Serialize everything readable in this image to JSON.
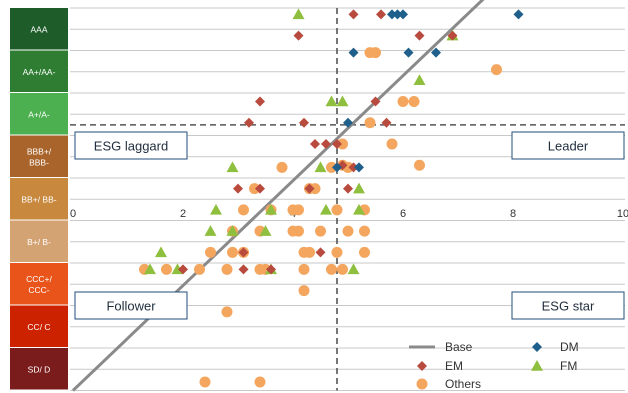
{
  "chart_data": {
    "type": "scatter",
    "title": "",
    "xlabel": "",
    "ylabel": "",
    "xlim": [
      0,
      10
    ],
    "x_ticks": [
      0,
      2,
      4,
      6,
      8,
      10
    ],
    "x_tick_labels": [
      "0",
      "2",
      "4",
      "6",
      "8",
      "10"
    ],
    "y_categories": [
      {
        "label": "AAA",
        "color": "#1e5c2a"
      },
      {
        "label": "AA+/AA-",
        "color": "#2e7d32"
      },
      {
        "label": "A+/A-",
        "color": "#4caf50"
      },
      {
        "label": "BBB+/ BBB-",
        "color": "#a8642a"
      },
      {
        "label": "BB+/ BB-",
        "color": "#c8893e"
      },
      {
        "label": "B+/ B-",
        "color": "#d4a373"
      },
      {
        "label": "CCC+/ CCC-",
        "color": "#e8541a"
      },
      {
        "label": "CC/ C",
        "color": "#cc2200"
      },
      {
        "label": "SD/ D",
        "color": "#7a1c1c"
      }
    ],
    "reference_lines": {
      "vertical_x": 4.8,
      "horizontal_row": 6.25
    },
    "quadrant_labels": {
      "top_left": "ESG laggard",
      "top_right": "Leader",
      "bottom_left": "Follower",
      "bottom_right": "ESG star"
    },
    "base_line": {
      "name": "Base",
      "from": [
        0,
        0
      ],
      "to": [
        8.1,
        10
      ]
    },
    "legend": {
      "position": "bottom-right"
    },
    "series": [
      {
        "name": "DM",
        "marker": "diamond",
        "color": "#1f5f8b",
        "points": [
          [
            6.2,
            9.85
          ],
          [
            6.8,
            9.85
          ],
          [
            7.6,
            9.85
          ],
          [
            7.8,
            9.85
          ],
          [
            8.6,
            9.85
          ],
          [
            9.1,
            9.85
          ],
          [
            6.8,
            9.35
          ],
          [
            7.5,
            9.35
          ],
          [
            5.8,
            8.85
          ],
          [
            5.9,
            8.85
          ],
          [
            6.0,
            8.85
          ],
          [
            8.1,
            8.85
          ],
          [
            5.1,
            7.95
          ],
          [
            6.1,
            7.95
          ],
          [
            6.6,
            7.95
          ],
          [
            5.0,
            6.3
          ],
          [
            5.2,
            5.25
          ],
          [
            4.8,
            5.25
          ]
        ]
      },
      {
        "name": "EM",
        "marker": "diamond",
        "color": "#b84a3e",
        "points": [
          [
            5.1,
            8.85
          ],
          [
            5.6,
            8.85
          ],
          [
            4.1,
            8.35
          ],
          [
            6.3,
            8.35
          ],
          [
            6.9,
            8.35
          ],
          [
            3.4,
            6.8
          ],
          [
            5.5,
            6.8
          ],
          [
            3.2,
            6.3
          ],
          [
            4.2,
            6.3
          ],
          [
            5.7,
            6.3
          ],
          [
            4.6,
            5.8
          ],
          [
            4.4,
            5.8
          ],
          [
            4.8,
            5.8
          ],
          [
            5.1,
            5.25
          ],
          [
            4.9,
            5.3
          ],
          [
            3.0,
            4.75
          ],
          [
            3.4,
            4.75
          ],
          [
            4.3,
            4.75
          ],
          [
            5.0,
            4.75
          ],
          [
            3.1,
            3.25
          ],
          [
            4.5,
            3.25
          ],
          [
            2.0,
            2.85
          ],
          [
            3.1,
            2.85
          ],
          [
            3.6,
            2.85
          ]
        ]
      },
      {
        "name": "FM",
        "marker": "triangle",
        "color": "#8fbf3f",
        "points": [
          [
            4.1,
            8.85
          ],
          [
            6.9,
            8.35
          ],
          [
            6.3,
            7.3
          ],
          [
            4.7,
            6.8
          ],
          [
            4.9,
            6.8
          ],
          [
            2.9,
            5.25
          ],
          [
            4.5,
            5.25
          ],
          [
            5.2,
            4.25
          ],
          [
            5.2,
            4.75
          ],
          [
            2.6,
            4.25
          ],
          [
            3.6,
            4.25
          ],
          [
            4.6,
            4.25
          ],
          [
            2.5,
            3.75
          ],
          [
            2.9,
            3.75
          ],
          [
            3.5,
            3.75
          ],
          [
            1.6,
            3.25
          ],
          [
            1.4,
            2.85
          ],
          [
            1.9,
            2.85
          ],
          [
            3.6,
            2.85
          ],
          [
            5.1,
            2.85
          ]
        ]
      },
      {
        "name": "Others",
        "marker": "circle",
        "color": "#f4a65e",
        "points": [
          [
            7.3,
            9.85
          ],
          [
            8.0,
            9.85
          ],
          [
            5.4,
            7.95
          ],
          [
            5.5,
            7.95
          ],
          [
            7.7,
            7.55
          ],
          [
            5.4,
            6.3
          ],
          [
            6.0,
            6.8
          ],
          [
            6.2,
            6.8
          ],
          [
            5.8,
            5.8
          ],
          [
            4.9,
            5.8
          ],
          [
            4.9,
            5.3
          ],
          [
            6.3,
            5.3
          ],
          [
            3.8,
            5.25
          ],
          [
            4.7,
            5.25
          ],
          [
            5.0,
            5.25
          ],
          [
            5.0,
            5.25
          ],
          [
            3.3,
            4.75
          ],
          [
            4.3,
            4.75
          ],
          [
            4.4,
            4.75
          ],
          [
            3.1,
            4.25
          ],
          [
            3.6,
            4.25
          ],
          [
            4.0,
            4.25
          ],
          [
            4.1,
            4.25
          ],
          [
            4.8,
            4.25
          ],
          [
            5.3,
            4.25
          ],
          [
            2.9,
            3.75
          ],
          [
            3.4,
            3.75
          ],
          [
            4.0,
            3.75
          ],
          [
            4.1,
            3.75
          ],
          [
            4.5,
            3.75
          ],
          [
            5.0,
            3.75
          ],
          [
            5.3,
            3.75
          ],
          [
            2.5,
            3.25
          ],
          [
            2.9,
            3.25
          ],
          [
            3.1,
            3.25
          ],
          [
            4.2,
            3.25
          ],
          [
            4.3,
            3.25
          ],
          [
            4.8,
            3.25
          ],
          [
            5.3,
            3.25
          ],
          [
            1.3,
            2.85
          ],
          [
            1.7,
            2.85
          ],
          [
            2.3,
            2.85
          ],
          [
            2.8,
            2.85
          ],
          [
            3.4,
            2.85
          ],
          [
            3.5,
            2.85
          ],
          [
            4.2,
            2.85
          ],
          [
            4.7,
            2.85
          ],
          [
            4.9,
            2.85
          ],
          [
            4.2,
            2.35
          ],
          [
            2.8,
            1.85
          ],
          [
            2.4,
            0.2
          ],
          [
            3.4,
            0.2
          ]
        ]
      }
    ]
  }
}
